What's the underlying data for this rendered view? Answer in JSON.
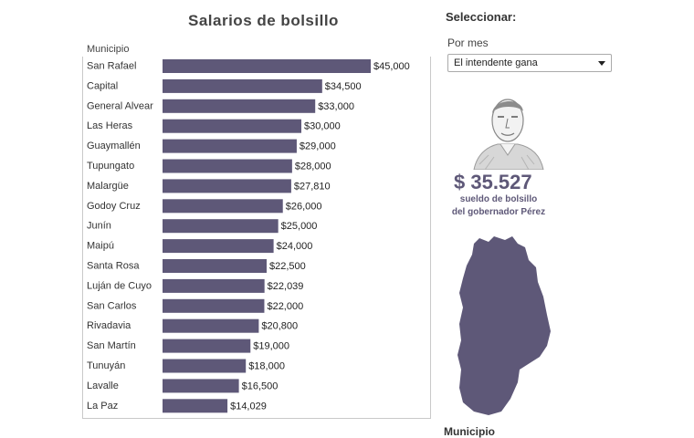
{
  "chart_data": {
    "type": "bar",
    "orientation": "horizontal",
    "title": "Salarios de bolsillo",
    "category_header": "Municipio",
    "categories": [
      "San Rafael",
      "Capital",
      "General Alvear",
      "Las Heras",
      "Guaymallén",
      "Tupungato",
      "Malargüe",
      "Godoy Cruz",
      "Junín",
      "Maipú",
      "Santa Rosa",
      "Luján de Cuyo",
      "San Carlos",
      "Rivadavia",
      "San Martín",
      "Tunuyán",
      "Lavalle",
      "La Paz"
    ],
    "values": [
      45000,
      34500,
      33000,
      30000,
      29000,
      28000,
      27810,
      26000,
      25000,
      24000,
      22500,
      22039,
      22000,
      20800,
      19000,
      18000,
      16500,
      14029
    ],
    "value_labels": [
      "$45,000",
      "$34,500",
      "$33,000",
      "$30,000",
      "$29,000",
      "$28,000",
      "$27,810",
      "$26,000",
      "$25,000",
      "$24,000",
      "$22,500",
      "$22,039",
      "$22,000",
      "$20,800",
      "$19,000",
      "$18,000",
      "$16,500",
      "$14,029"
    ],
    "xlim": [
      0,
      45000
    ],
    "bar_color": "#5e5878"
  },
  "sidebar": {
    "title": "Seleccionar:",
    "filter_label": "Por mes",
    "dropdown_value": "El intendente gana",
    "portrait_icon": "governor-portrait-icon",
    "governor_amount": "$ 35.527",
    "governor_caption_line1": "sueldo de bolsillo",
    "governor_caption_line2": "del gobernador Pérez",
    "map_icon": "mendoza-map-icon",
    "bottom_label": "Municipio",
    "accent_color": "#5e5878"
  }
}
